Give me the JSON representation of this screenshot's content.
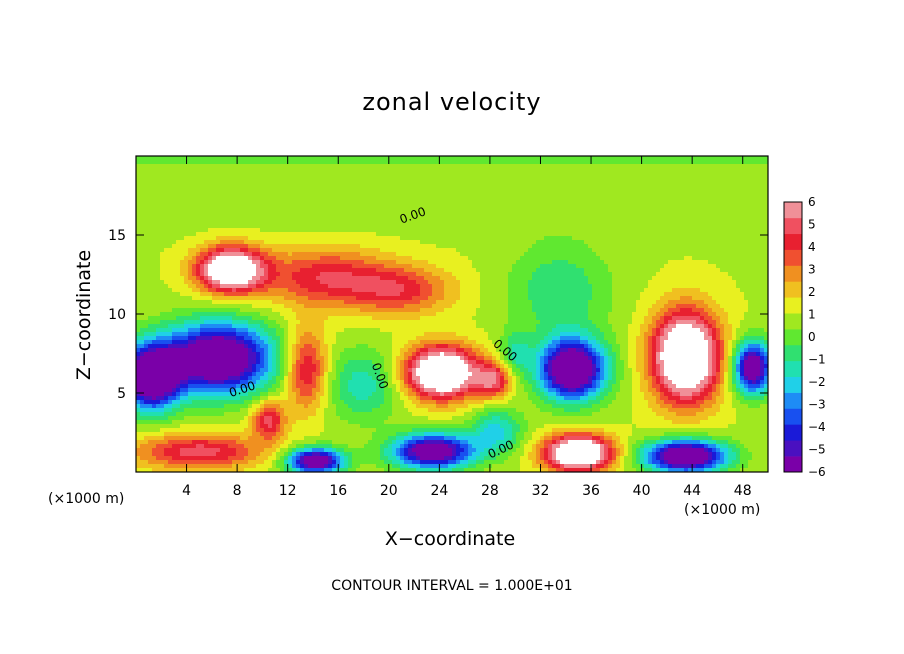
{
  "chart_data": {
    "type": "heatmap",
    "title": "zonal velocity",
    "xlabel": "X−coordinate",
    "ylabel": "Z−coordinate",
    "x_unit_left": "(×1000 m)",
    "x_unit_right": "(×1000 m)",
    "annotation": "CONTOUR INTERVAL = 1.000E+01",
    "contour_label": "0.00",
    "xlim": [
      0,
      50
    ],
    "ylim": [
      0,
      20
    ],
    "x_ticks": [
      "4",
      "8",
      "12",
      "16",
      "20",
      "24",
      "28",
      "32",
      "36",
      "40",
      "44",
      "48"
    ],
    "y_ticks": [
      "5",
      "10",
      "15"
    ],
    "colorbar": {
      "min": -6,
      "max": 6,
      "labels": [
        "6",
        "5",
        "4",
        "3",
        "2",
        "1",
        "0",
        "−1",
        "−2",
        "−3",
        "−4",
        "−5",
        "−6"
      ],
      "colors": [
        "#7a00a8",
        "#4a10c0",
        "#1a1ad8",
        "#1850f0",
        "#1e8cf5",
        "#20d0e8",
        "#20e0b0",
        "#30e070",
        "#60e830",
        "#a0e820",
        "#e8f020",
        "#f0c020",
        "#f09020",
        "#f05030",
        "#e82030",
        "#f05060",
        "#f09098"
      ]
    },
    "features": [
      {
        "x": 7.5,
        "z": 12.8,
        "u": 8,
        "r": [
          2.6,
          1.4
        ]
      },
      {
        "x": 15,
        "z": 12.3,
        "u": 3.5,
        "r": [
          5,
          1.8
        ]
      },
      {
        "x": 21,
        "z": 11.5,
        "u": 3,
        "r": [
          4,
          1.5
        ]
      },
      {
        "x": 6.5,
        "z": 7.2,
        "u": -9,
        "r": [
          4.2,
          2.2
        ]
      },
      {
        "x": 1.2,
        "z": 6.0,
        "u": -9,
        "r": [
          2.2,
          2.0
        ]
      },
      {
        "x": 13.5,
        "z": 6.5,
        "u": 4,
        "r": [
          1.6,
          2.5
        ]
      },
      {
        "x": 10.5,
        "z": 3.3,
        "u": 4,
        "r": [
          1.3,
          1.2
        ]
      },
      {
        "x": 18,
        "z": 5.5,
        "u": -2.5,
        "r": [
          2.8,
          2.2
        ]
      },
      {
        "x": 24.2,
        "z": 6.3,
        "u": 9,
        "r": [
          2.8,
          1.6
        ]
      },
      {
        "x": 28.3,
        "z": 5.8,
        "u": 4,
        "r": [
          1.4,
          1.1
        ]
      },
      {
        "x": 33.5,
        "z": 11.5,
        "u": -2,
        "r": [
          4,
          3
        ]
      },
      {
        "x": 34.5,
        "z": 6.5,
        "u": -9,
        "r": [
          2.6,
          1.9
        ]
      },
      {
        "x": 43.5,
        "z": 7.3,
        "u": 9,
        "r": [
          2.6,
          2.8
        ]
      },
      {
        "x": 48.8,
        "z": 6.6,
        "u": -8,
        "r": [
          1.5,
          1.6
        ]
      },
      {
        "x": 35,
        "z": 1.2,
        "u": 9,
        "r": [
          2.6,
          1.1
        ]
      },
      {
        "x": 43.5,
        "z": 1.0,
        "u": -9,
        "r": [
          3.2,
          1.0
        ]
      },
      {
        "x": 23.5,
        "z": 1.3,
        "u": -8,
        "r": [
          3.2,
          1.1
        ]
      },
      {
        "x": 14.2,
        "z": 0.7,
        "u": -8,
        "r": [
          2.2,
          0.8
        ]
      },
      {
        "x": 5,
        "z": 1.3,
        "u": 4,
        "r": [
          5,
          1.1
        ]
      },
      {
        "x": 28.5,
        "z": 2.6,
        "u": -3,
        "r": [
          2,
          1.4
        ]
      },
      {
        "x": 30,
        "z": 7.5,
        "u": -2,
        "r": [
          1.2,
          1.4
        ]
      }
    ]
  }
}
